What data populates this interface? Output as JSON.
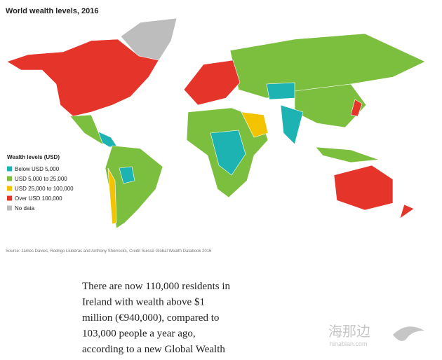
{
  "header": {
    "title": "World wealth levels, 2016"
  },
  "legend": {
    "title": "Wealth levels (USD)",
    "items": [
      {
        "label": "Below USD 5,000",
        "color": "#1db3b3"
      },
      {
        "label": "USD 5,000 to 25,000",
        "color": "#7cbf3f"
      },
      {
        "label": "USD 25,000 to 100,000",
        "color": "#f3c300"
      },
      {
        "label": "Over USD 100,000",
        "color": "#e5352b"
      },
      {
        "label": "No data",
        "color": "#bdbdbd"
      }
    ]
  },
  "source": "Source: James Davies, Rodrigo Lluberas and Anthony Shorrocks, Credit Suisse Global Wealth Databook 2016",
  "article": {
    "lines": [
      "There are now 110,000 residents in",
      "Ireland with wealth above $1",
      "million (€940,000), compared to",
      "103,000 people a year ago,",
      "according to a new Global Wealth"
    ]
  },
  "watermark": {
    "name": "海那边",
    "site": "hinabian.com"
  }
}
